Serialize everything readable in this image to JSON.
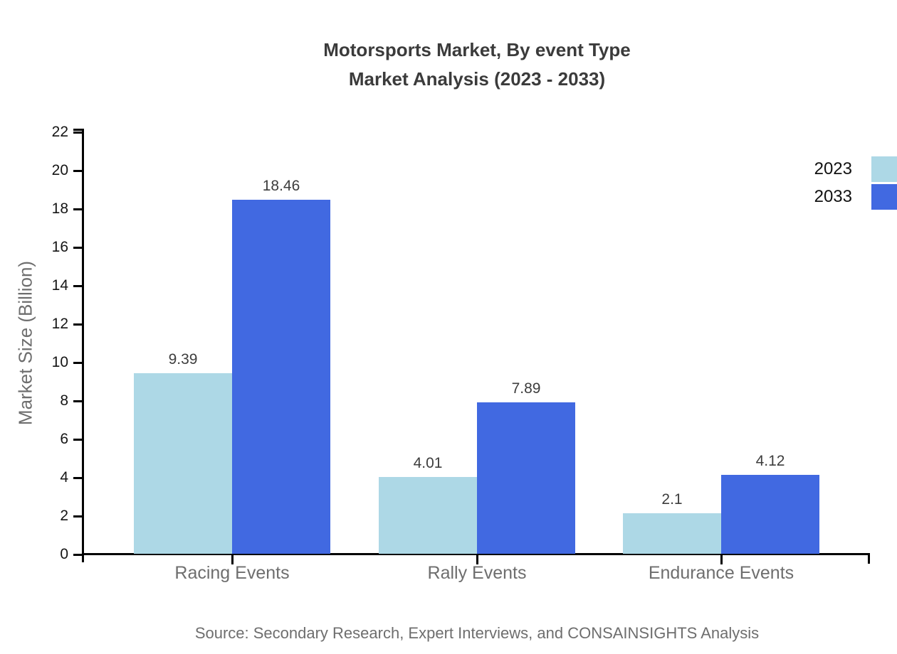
{
  "chart": {
    "title_line1": "Motorsports Market, By event Type",
    "title_line2": "Market Analysis (2023 - 2033)",
    "ylabel": "Market Size (Billion)",
    "source": "Source: Secondary Research, Expert Interviews, and CONSAINSIGHTS Analysis"
  },
  "chart_data": {
    "type": "bar",
    "title": "Motorsports Market, By event Type",
    "subtitle": "Market Analysis (2023 - 2033)",
    "categories": [
      "Racing Events",
      "Rally Events",
      "Endurance Events"
    ],
    "series": [
      {
        "name": "2023",
        "color": "#ADD8E6",
        "values": [
          9.39,
          4.01,
          2.1
        ]
      },
      {
        "name": "2033",
        "color": "#4169E1",
        "values": [
          18.46,
          7.89,
          4.12
        ]
      }
    ],
    "xlabel": "",
    "ylabel": "Market Size (Billion)",
    "ylim": [
      0,
      22
    ],
    "ytick_step": 2,
    "grid": false,
    "legend_position": "top-right",
    "value_labels": true
  },
  "colors": {
    "title": "#3b3b3b",
    "axis": "#000000",
    "tick_label": "#151515",
    "category_label": "#6e6e6e",
    "value_label": "#3d3d3d",
    "source": "#6e6e6e",
    "series_2023": "#ADD8E6",
    "series_2033": "#4169E1"
  }
}
